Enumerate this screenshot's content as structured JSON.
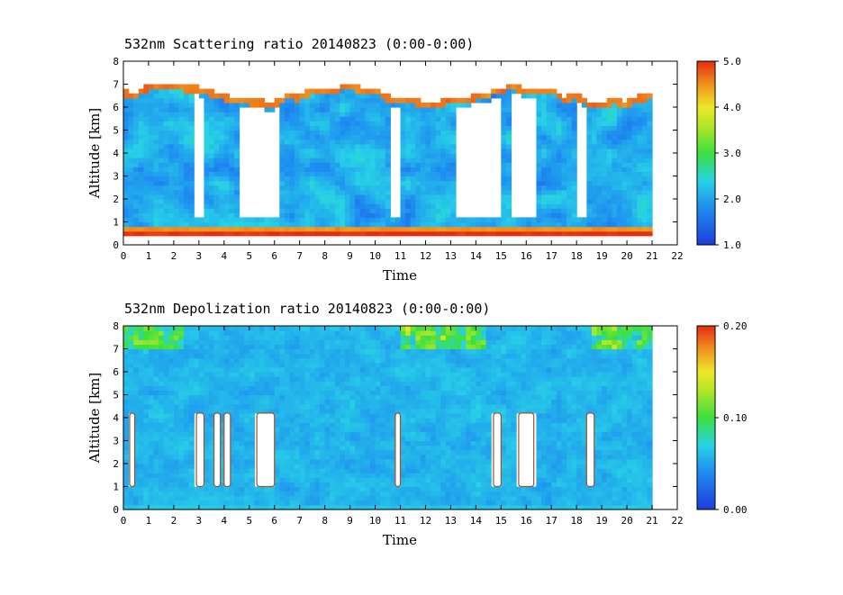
{
  "chart_data": [
    {
      "type": "heatmap",
      "title": "532nm Scattering ratio  20140823 (0:00-0:00)",
      "xlabel": "Time",
      "ylabel": "Altitude [km]",
      "xlim": [
        0,
        22
      ],
      "ylim": [
        0,
        8
      ],
      "x_ticks": [
        "0",
        "1",
        "2",
        "3",
        "4",
        "5",
        "6",
        "7",
        "8",
        "9",
        "10",
        "11",
        "12",
        "13",
        "14",
        "15",
        "16",
        "17",
        "18",
        "19",
        "20",
        "21",
        "22"
      ],
      "y_ticks": [
        "0",
        "1",
        "2",
        "3",
        "4",
        "5",
        "6",
        "7",
        "8"
      ],
      "data_end_time": 21,
      "colorbar": {
        "min": 1.0,
        "max": 5.0,
        "ticks": [
          "1.0",
          "2.0",
          "3.0",
          "4.0",
          "5.0"
        ]
      },
      "colors": {
        "low": "#1e3cdc",
        "mid": "#3ce03c",
        "high": "#e82a10",
        "outline": "#a0522d"
      },
      "features": {
        "boundary_layer": {
          "top_km": 0.9,
          "scattering_ratio": 4.5
        },
        "cloud_layer_top_km": 6.5,
        "clear_gaps_time_h": [
          [
            2.8,
            3.1
          ],
          [
            4.6,
            6.2
          ],
          [
            10.6,
            11.0
          ],
          [
            13.3,
            15.0
          ],
          [
            15.4,
            16.5
          ],
          [
            18.0,
            18.4
          ]
        ]
      }
    },
    {
      "type": "heatmap",
      "title": "532nm Depolization ratio  20140823 (0:00-0:00)",
      "xlabel": "Time",
      "ylabel": "Altitude [km]",
      "xlim": [
        0,
        22
      ],
      "ylim": [
        0,
        8
      ],
      "x_ticks": [
        "0",
        "1",
        "2",
        "3",
        "4",
        "5",
        "6",
        "7",
        "8",
        "9",
        "10",
        "11",
        "12",
        "13",
        "14",
        "15",
        "16",
        "17",
        "18",
        "19",
        "20",
        "21",
        "22"
      ],
      "y_ticks": [
        "0",
        "1",
        "2",
        "3",
        "4",
        "5",
        "6",
        "7",
        "8"
      ],
      "data_end_time": 21,
      "colorbar": {
        "min": 0.0,
        "max": 0.2,
        "ticks": [
          "0.00",
          "0.10",
          "0.20"
        ]
      },
      "colors": {
        "low": "#1e3cdc",
        "mid": "#3ce03c",
        "high": "#e82a10",
        "outline": "#a0522d"
      },
      "features": {
        "high_depol_columns_time_h": [
          [
            0.25,
            0.45
          ],
          [
            2.9,
            3.2
          ],
          [
            3.6,
            3.85
          ],
          [
            4.0,
            4.25
          ],
          [
            5.3,
            6.0
          ],
          [
            10.8,
            11.0
          ],
          [
            14.7,
            15.0
          ],
          [
            15.7,
            16.3
          ],
          [
            18.4,
            18.7
          ]
        ]
      }
    }
  ]
}
